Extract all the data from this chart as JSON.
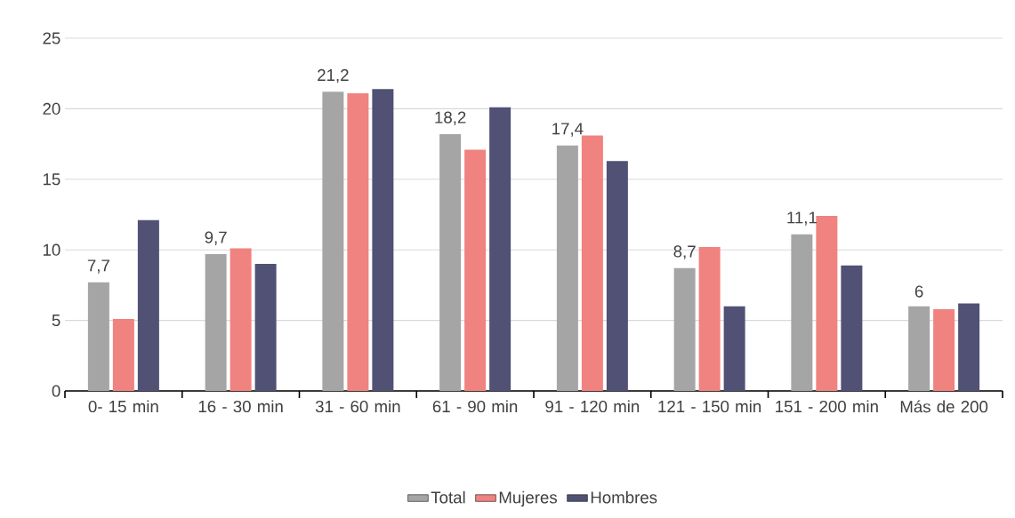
{
  "chart_data": {
    "type": "bar",
    "categories": [
      "0- 15 min",
      "16 - 30 min",
      "31 - 60 min",
      "61 - 90 min",
      "91 - 120 min",
      "121 - 150 min",
      "151 - 200 min",
      "Más de 200"
    ],
    "series": [
      {
        "name": "Total",
        "color": "#a5a5a5",
        "values": [
          7.7,
          9.7,
          21.2,
          18.2,
          17.4,
          8.7,
          11.1,
          6
        ],
        "value_labels": [
          "7,7",
          "9,7",
          "21,2",
          "18,2",
          "17,4",
          "8,7",
          "11,1",
          "6"
        ]
      },
      {
        "name": "Mujeres",
        "color": "#f0827f",
        "values": [
          5.1,
          10.1,
          21.1,
          17.1,
          18.1,
          10.2,
          12.4,
          5.8
        ]
      },
      {
        "name": "Hombres",
        "color": "#515175",
        "values": [
          12.1,
          9.0,
          21.4,
          20.1,
          16.3,
          6.0,
          8.9,
          6.2
        ]
      }
    ],
    "ylim": [
      0,
      25
    ],
    "yticks": [
      0,
      5,
      10,
      15,
      20,
      25
    ],
    "grid": "y",
    "legend": "bottom"
  }
}
